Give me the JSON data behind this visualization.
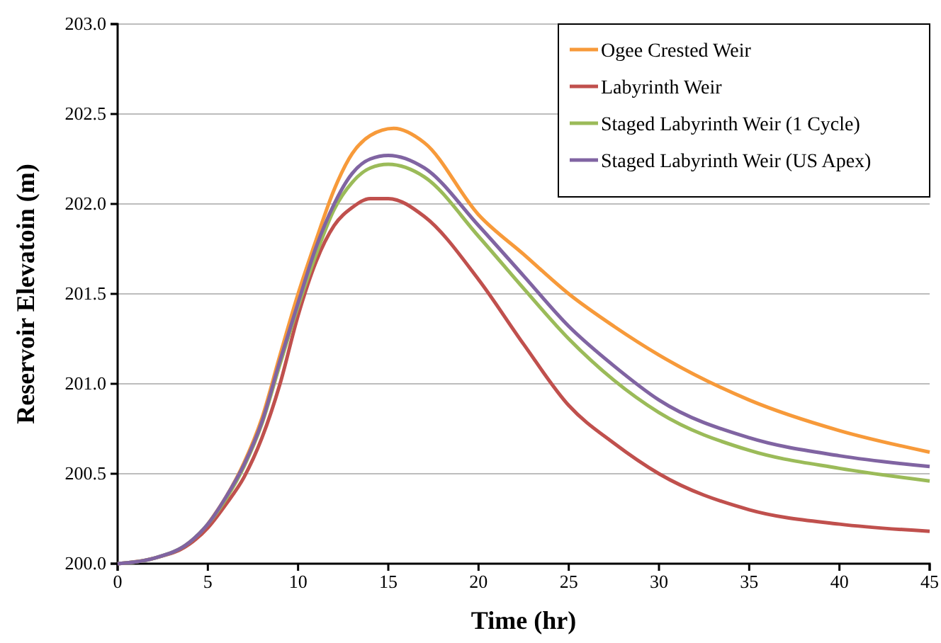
{
  "chart_data": {
    "type": "line",
    "xlabel": "Time (hr)",
    "ylabel": "Reservoir Elevatoin (m)",
    "x": [
      0,
      2,
      4,
      5,
      6,
      7,
      8,
      9,
      10,
      11,
      12,
      13,
      14,
      15,
      17,
      20,
      22.5,
      25,
      27.5,
      30,
      35,
      40,
      45
    ],
    "xlim": [
      0,
      45
    ],
    "xticks": [
      0,
      5,
      10,
      15,
      20,
      25,
      30,
      35,
      40,
      45
    ],
    "ylim": [
      200,
      203
    ],
    "yticks": [
      {
        "value": 200,
        "label": "200.0"
      },
      {
        "value": 200.5,
        "label": "200.5"
      },
      {
        "value": 201,
        "label": "201.0"
      },
      {
        "value": 201.5,
        "label": "201.5"
      },
      {
        "value": 202,
        "label": "202.0"
      },
      {
        "value": 202.5,
        "label": "202.5"
      },
      {
        "value": 203,
        "label": "203.0"
      }
    ],
    "grid": "y",
    "legend": "top right",
    "marker": "none",
    "line_style": "solid",
    "series": [
      {
        "name": "Ogee Crested Weir",
        "color": "#f79a3a",
        "x": [
          5,
          6,
          7,
          8,
          9,
          10,
          11,
          12,
          13,
          14,
          15.3,
          17,
          20,
          22.5,
          25,
          27.5,
          30,
          35,
          40,
          45
        ],
        "values": [
          200.22,
          200.37,
          200.56,
          200.81,
          201.16,
          201.5,
          201.8,
          202.08,
          202.28,
          202.38,
          202.42,
          202.34,
          201.94,
          201.72,
          201.5,
          201.32,
          201.16,
          200.91,
          200.74,
          200.62
        ]
      },
      {
        "name": "Labyrinth Weir",
        "color": "#c0504d",
        "values": [
          200,
          200.03,
          200.11,
          200.2,
          200.33,
          200.48,
          200.7,
          201.0,
          201.38,
          201.68,
          201.88,
          201.98,
          202.03,
          202.03,
          201.93,
          201.58,
          201.22,
          200.88,
          200.67,
          200.5,
          200.3,
          200.22,
          200.18
        ]
      },
      {
        "name": "Staged Labyrinth Weir (1 Cycle)",
        "color": "#9bbb59",
        "values": [
          200,
          200.03,
          200.12,
          200.22,
          200.36,
          200.54,
          200.78,
          201.11,
          201.43,
          201.72,
          201.97,
          202.12,
          202.2,
          202.22,
          202.15,
          201.82,
          201.53,
          201.25,
          201.02,
          200.84,
          200.63,
          200.53,
          200.46
        ]
      },
      {
        "name": "Staged Labyrinth Weir (US Apex)",
        "color": "#8064a2",
        "values": [
          200,
          200.03,
          200.12,
          200.22,
          200.37,
          200.55,
          200.79,
          201.13,
          201.45,
          201.76,
          202.0,
          202.17,
          202.25,
          202.27,
          202.2,
          201.88,
          201.6,
          201.32,
          201.1,
          200.91,
          200.7,
          200.6,
          200.54
        ]
      }
    ]
  }
}
